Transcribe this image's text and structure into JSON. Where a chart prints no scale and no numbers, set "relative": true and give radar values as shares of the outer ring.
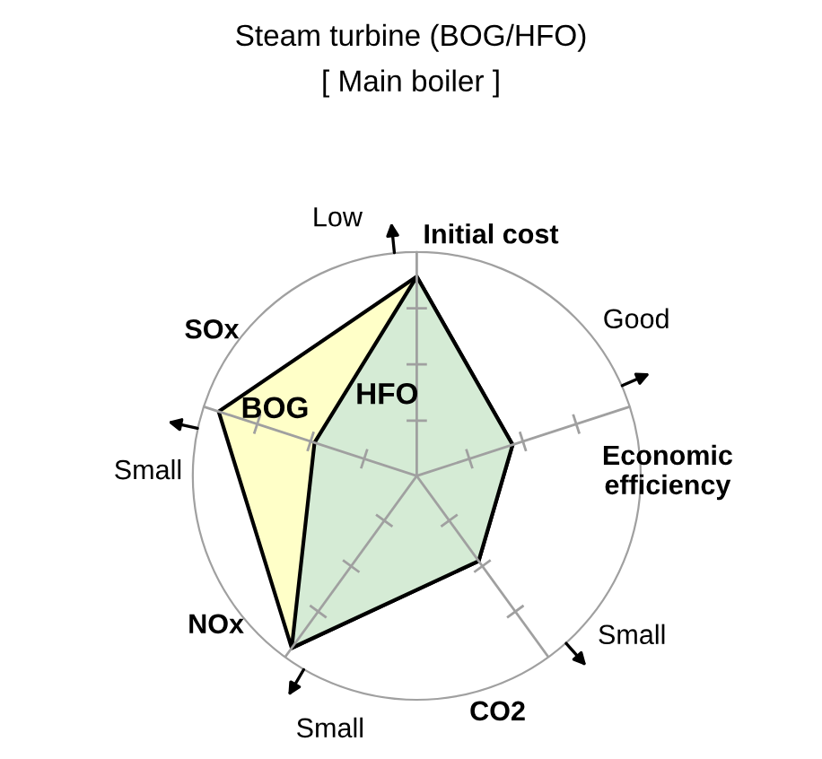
{
  "chart_data": {
    "type": "radar",
    "title": "Steam turbine (BOG/HFO)",
    "subtitle": "[ Main boiler ]",
    "categories": [
      "Initial cost",
      "Economic\nefficiency",
      "CO2",
      "NOx",
      "SOx"
    ],
    "relative": true,
    "grid": true,
    "annotations": [
      "Low",
      "Good",
      "Small",
      "Small",
      "Small"
    ],
    "series": [
      {
        "name": "BOG",
        "color": "#ffffc8",
        "values": [
          0.89,
          0.45,
          0.47,
          0.95,
          0.93
        ]
      },
      {
        "name": "HFO",
        "color": "#d5ebd5",
        "values": [
          0.89,
          0.45,
          0.47,
          0.95,
          0.48
        ]
      }
    ]
  }
}
